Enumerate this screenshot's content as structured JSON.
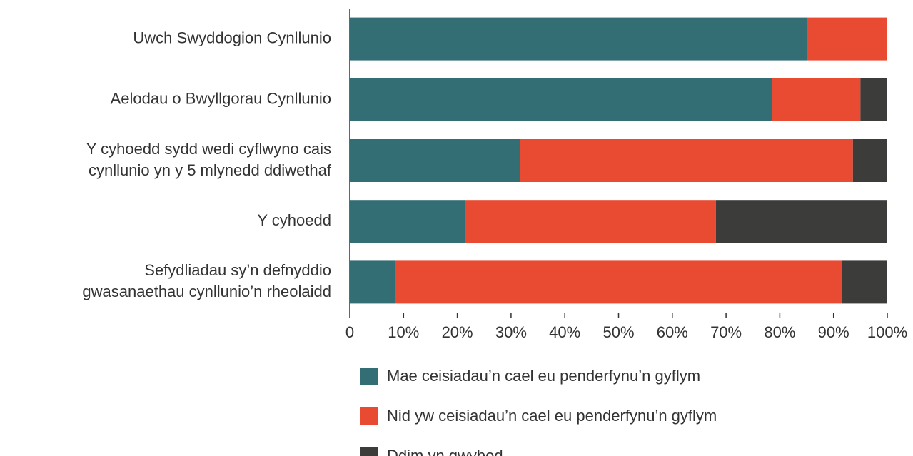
{
  "chart_data": {
    "type": "stacked-barh",
    "categories": [
      [
        "Uwch Swyddogion Cynllunio"
      ],
      [
        "Aelodau o Bwyllgorau Cynllunio"
      ],
      [
        "Y cyhoedd sydd wedi cyflwyno cais",
        "cynllunio yn y 5 mlynedd ddiwethaf"
      ],
      [
        "Y cyhoedd"
      ],
      [
        "Sefydliadau sy’n defnyddio",
        "gwasanaethau cynllunio’n rheolaidd"
      ]
    ],
    "series": [
      {
        "name": "Mae ceisiadau’n cael eu penderfynu’n gyflym",
        "color": "#336e74",
        "values": [
          85,
          78.5,
          31.7,
          21.5,
          8.4
        ]
      },
      {
        "name": "Nid yw ceisiadau’n cael eu penderfynu’n gyflym",
        "color": "#e84a32",
        "values": [
          15,
          16.5,
          61.9,
          46.6,
          83.2
        ]
      },
      {
        "name": "Ddim yn gwybod",
        "color": "#3c3c3b",
        "values": [
          0,
          5,
          6.4,
          31.9,
          8.4
        ]
      }
    ],
    "xlim": [
      0,
      100
    ],
    "xticks": [
      0,
      {
        "value": 10,
        "label": "10%"
      },
      {
        "value": 20,
        "label": "20%"
      },
      {
        "value": 30,
        "label": "30%"
      },
      {
        "value": 40,
        "label": "40%"
      },
      {
        "value": 50,
        "label": "50%"
      },
      {
        "value": 60,
        "label": "60%"
      },
      {
        "value": 70,
        "label": "70%"
      },
      {
        "value": 80,
        "label": "80%"
      },
      {
        "value": 90,
        "label": "90%"
      },
      {
        "value": 100,
        "label": "100%"
      }
    ],
    "legend": "bottom"
  }
}
